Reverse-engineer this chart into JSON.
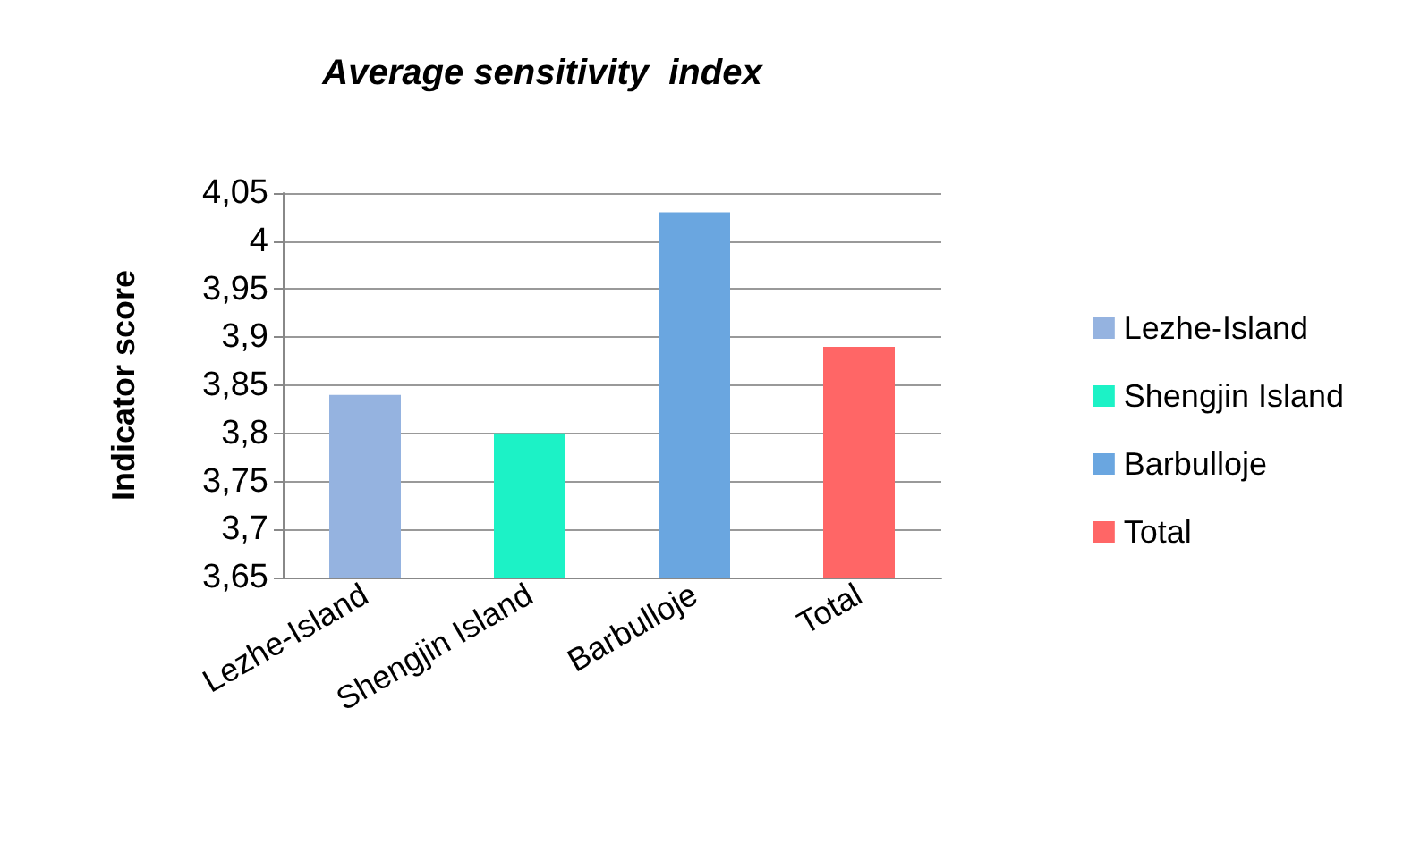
{
  "chart_data": {
    "type": "bar",
    "title": "Average sensitivity  index",
    "ylabel": "Indicator score",
    "categories": [
      "Lezhe-Island",
      "Shengjin Island",
      "Barbulloje",
      "Total"
    ],
    "series": [
      {
        "name": "Lezhe-Island",
        "color": "#95b3e0",
        "values": [
          3.84,
          null,
          null,
          null
        ]
      },
      {
        "name": "Shengjin Island",
        "color": "#1cf2c6",
        "values": [
          null,
          3.8,
          null,
          null
        ]
      },
      {
        "name": "Barbulloje",
        "color": "#6aa6e0",
        "values": [
          null,
          null,
          4.03,
          null
        ]
      },
      {
        "name": "Total",
        "color": "#ff6666",
        "values": [
          null,
          null,
          null,
          3.89
        ]
      }
    ],
    "ylim": [
      3.65,
      4.05
    ],
    "yticks": [
      {
        "value": 3.65,
        "label": "3,65"
      },
      {
        "value": 3.7,
        "label": "3,7"
      },
      {
        "value": 3.75,
        "label": "3,75"
      },
      {
        "value": 3.8,
        "label": "3,8"
      },
      {
        "value": 3.85,
        "label": "3,85"
      },
      {
        "value": 3.9,
        "label": "3,9"
      },
      {
        "value": 3.95,
        "label": "3,95"
      },
      {
        "value": 4,
        "label": "4"
      },
      {
        "value": 4.05,
        "label": "4,05"
      }
    ],
    "grid": "y",
    "legend": "right"
  }
}
